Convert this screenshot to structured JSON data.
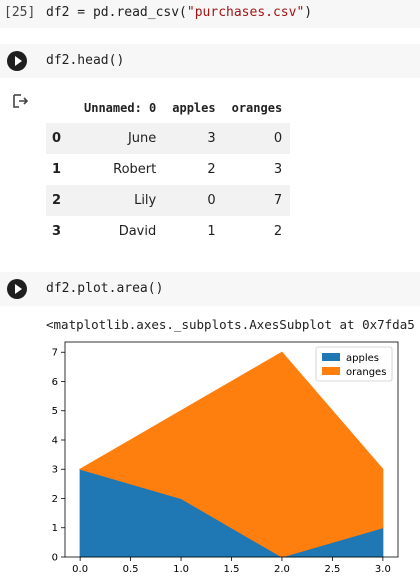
{
  "cell1": {
    "prompt": "[25]",
    "code_prefix": "df2 = pd.read_csv(",
    "code_string": "\"purchases.csv\"",
    "code_suffix": ")"
  },
  "cell2": {
    "code": "df2.head()"
  },
  "dataframe": {
    "columns": [
      "Unnamed: 0",
      "apples",
      "oranges"
    ],
    "rows": [
      {
        "index": "0",
        "values": [
          "June",
          "3",
          "0"
        ]
      },
      {
        "index": "1",
        "values": [
          "Robert",
          "2",
          "3"
        ]
      },
      {
        "index": "2",
        "values": [
          "Lily",
          "0",
          "7"
        ]
      },
      {
        "index": "3",
        "values": [
          "David",
          "1",
          "2"
        ]
      }
    ]
  },
  "cell3": {
    "code": "df2.plot.area()",
    "repr": "<matplotlib.axes._subplots.AxesSubplot at 0x7fda5"
  },
  "chart_data": {
    "type": "area",
    "stacked": true,
    "x": [
      0,
      1,
      2,
      3
    ],
    "series": [
      {
        "name": "apples",
        "values": [
          3,
          2,
          0,
          1
        ],
        "color": "#1f77b4"
      },
      {
        "name": "oranges",
        "values": [
          0,
          3,
          7,
          2
        ],
        "color": "#ff7f0e"
      }
    ],
    "xlim": [
      -0.15,
      3.15
    ],
    "ylim": [
      0,
      7.35
    ],
    "xticks": [
      "0.0",
      "0.5",
      "1.0",
      "1.5",
      "2.0",
      "2.5",
      "3.0"
    ],
    "yticks": [
      "0",
      "1",
      "2",
      "3",
      "4",
      "5",
      "6",
      "7"
    ],
    "legend": "top-right",
    "grid": false
  }
}
